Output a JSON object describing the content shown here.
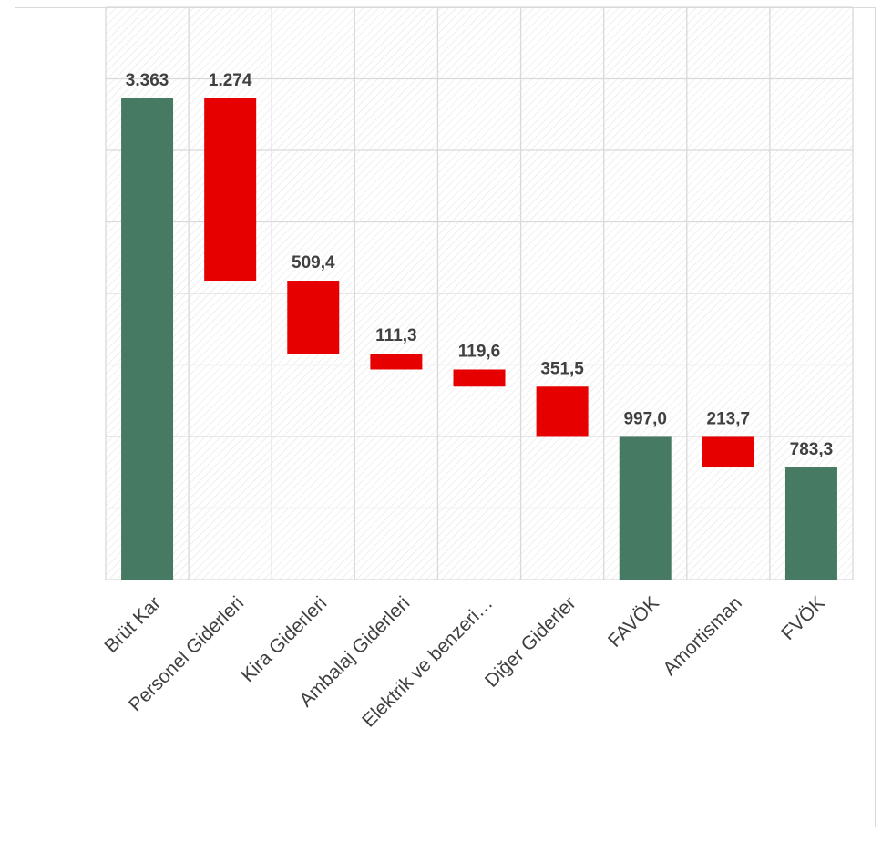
{
  "chart_data": {
    "type": "bar",
    "subtype": "waterfall",
    "categories": [
      "Brüt Kar",
      "Personel Giderleri",
      "Kira Giderleri",
      "Ambalaj Giderleri",
      "Elektrik ve benzeri…",
      "Diğer Giderler",
      "FAVÖK",
      "Amortisman",
      "FVÖK"
    ],
    "values": [
      3363,
      -1274,
      -509.4,
      -111.3,
      -119.6,
      -351.5,
      997.0,
      -213.7,
      783.3
    ],
    "data_labels": [
      "3.363",
      "1.274",
      "509,4",
      "111,3",
      "119,6",
      "351,5",
      "997,0",
      "213,7",
      "783,3"
    ],
    "kinds": [
      "total",
      "decrease",
      "decrease",
      "decrease",
      "decrease",
      "decrease",
      "total",
      "decrease",
      "total"
    ],
    "ylim": [
      0,
      4000
    ],
    "grid": true,
    "legend": "none",
    "colors": {
      "total": "#477a62",
      "decrease": "#e60000",
      "grid": "#d9d9d9",
      "hatch": "#e6e6e6",
      "text": "#404040"
    }
  }
}
